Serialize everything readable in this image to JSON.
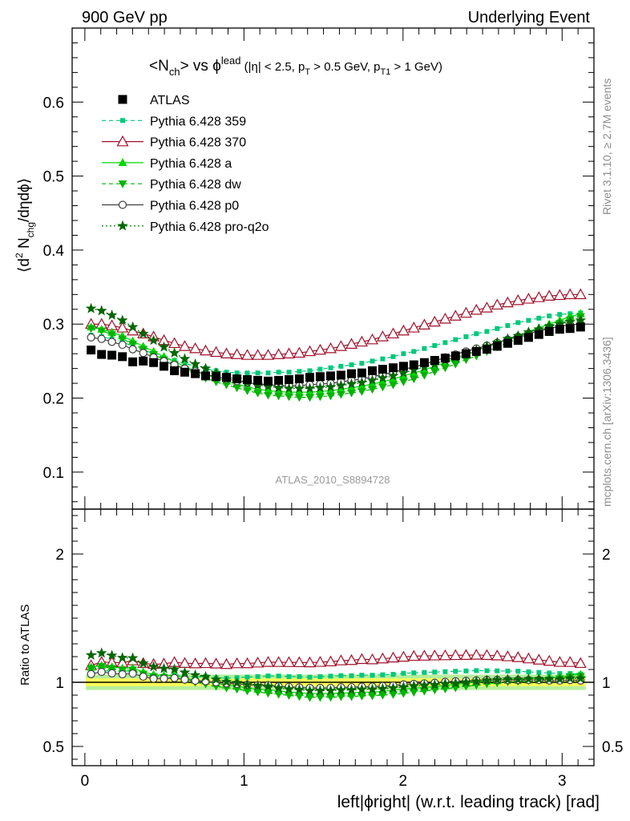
{
  "header": {
    "left": "900 GeV pp",
    "right": "Underlying Event"
  },
  "side": {
    "rivet": "Rivet 3.1.10, ≥ 2.7M events",
    "mcplots": "mcplots.cern.ch [arXiv:1306.3436]"
  },
  "watermark": "ATLAS_2010_S8894728",
  "colors": {
    "atlas": "#000000",
    "p359": "#00c87a",
    "p370": "#a0102a",
    "pa": "#00d800",
    "pdw": "#00b400",
    "pp0": "#404040",
    "pq2o": "#006600",
    "band_inner": "#ffff55",
    "band_outer": "#b6ee9c"
  },
  "chart_data": [
    {
      "type": "scatter",
      "title": "<Nch> vs φlead (|η| < 2.5, pT > 0.5 GeV, pT1 > 1 GeV)",
      "ylabel": "⟨d² Nchg/dηdφ⟩",
      "xlim": [
        -0.08,
        3.2
      ],
      "ylim": [
        0.05,
        0.7
      ],
      "yticks": [
        "0.1",
        "0.2",
        "0.3",
        "0.4",
        "0.5",
        "0.6"
      ],
      "legend_position": "top-left",
      "legend": [
        "ATLAS",
        "Pythia 6.428 359",
        "Pythia 6.428 370",
        "Pythia 6.428 a",
        "Pythia 6.428 dw",
        "Pythia 6.428 p0",
        "Pythia 6.428 pro-q2o"
      ],
      "x": [
        0.039,
        0.105,
        0.17,
        0.236,
        0.301,
        0.367,
        0.432,
        0.497,
        0.563,
        0.628,
        0.694,
        0.759,
        0.825,
        0.89,
        0.956,
        1.021,
        1.087,
        1.152,
        1.218,
        1.283,
        1.348,
        1.414,
        1.479,
        1.545,
        1.61,
        1.676,
        1.741,
        1.807,
        1.872,
        1.938,
        2.003,
        2.068,
        2.134,
        2.199,
        2.265,
        2.33,
        2.396,
        2.461,
        2.527,
        2.592,
        2.658,
        2.723,
        2.789,
        2.854,
        2.919,
        2.985,
        3.05,
        3.116
      ],
      "series": [
        {
          "name": "ATLAS",
          "values": [
            0.265,
            0.259,
            0.258,
            0.256,
            0.249,
            0.25,
            0.248,
            0.243,
            0.237,
            0.235,
            0.233,
            0.23,
            0.229,
            0.228,
            0.226,
            0.225,
            0.224,
            0.223,
            0.224,
            0.225,
            0.226,
            0.228,
            0.229,
            0.23,
            0.231,
            0.233,
            0.234,
            0.237,
            0.239,
            0.241,
            0.243,
            0.245,
            0.248,
            0.251,
            0.254,
            0.257,
            0.26,
            0.263,
            0.266,
            0.27,
            0.274,
            0.278,
            0.282,
            0.286,
            0.29,
            0.293,
            0.294,
            0.296
          ]
        },
        {
          "name": "Pythia 6.428 359",
          "values": [
            0.285,
            0.283,
            0.28,
            0.276,
            0.27,
            0.265,
            0.26,
            0.255,
            0.251,
            0.247,
            0.243,
            0.24,
            0.237,
            0.235,
            0.234,
            0.234,
            0.234,
            0.234,
            0.235,
            0.235,
            0.236,
            0.237,
            0.239,
            0.241,
            0.243,
            0.245,
            0.247,
            0.25,
            0.253,
            0.256,
            0.26,
            0.263,
            0.267,
            0.271,
            0.275,
            0.279,
            0.283,
            0.287,
            0.29,
            0.294,
            0.298,
            0.302,
            0.305,
            0.308,
            0.311,
            0.313,
            0.314,
            0.315
          ]
        },
        {
          "name": "Pythia 6.428 370",
          "values": [
            0.3,
            0.3,
            0.298,
            0.295,
            0.291,
            0.287,
            0.283,
            0.278,
            0.274,
            0.27,
            0.267,
            0.264,
            0.262,
            0.26,
            0.259,
            0.258,
            0.258,
            0.258,
            0.259,
            0.26,
            0.261,
            0.263,
            0.265,
            0.267,
            0.27,
            0.273,
            0.276,
            0.279,
            0.283,
            0.287,
            0.291,
            0.295,
            0.299,
            0.303,
            0.307,
            0.311,
            0.315,
            0.319,
            0.322,
            0.326,
            0.329,
            0.332,
            0.334,
            0.336,
            0.338,
            0.339,
            0.34,
            0.34
          ]
        },
        {
          "name": "Pythia 6.428 a",
          "values": [
            0.296,
            0.293,
            0.289,
            0.284,
            0.277,
            0.27,
            0.263,
            0.256,
            0.249,
            0.243,
            0.237,
            0.232,
            0.227,
            0.223,
            0.219,
            0.215,
            0.212,
            0.21,
            0.209,
            0.208,
            0.208,
            0.208,
            0.209,
            0.21,
            0.212,
            0.214,
            0.216,
            0.219,
            0.222,
            0.226,
            0.23,
            0.234,
            0.238,
            0.243,
            0.248,
            0.253,
            0.258,
            0.264,
            0.269,
            0.274,
            0.28,
            0.285,
            0.29,
            0.295,
            0.3,
            0.305,
            0.31,
            0.314
          ]
        },
        {
          "name": "Pythia 6.428 dw",
          "values": [
            0.294,
            0.291,
            0.286,
            0.28,
            0.273,
            0.266,
            0.259,
            0.252,
            0.245,
            0.239,
            0.233,
            0.227,
            0.222,
            0.218,
            0.214,
            0.21,
            0.207,
            0.204,
            0.203,
            0.202,
            0.201,
            0.201,
            0.202,
            0.203,
            0.205,
            0.207,
            0.209,
            0.212,
            0.215,
            0.218,
            0.222,
            0.226,
            0.231,
            0.236,
            0.241,
            0.246,
            0.252,
            0.257,
            0.263,
            0.269,
            0.275,
            0.28,
            0.286,
            0.291,
            0.296,
            0.301,
            0.306,
            0.31
          ]
        },
        {
          "name": "Pythia 6.428 p0",
          "values": [
            0.282,
            0.28,
            0.276,
            0.272,
            0.266,
            0.261,
            0.255,
            0.25,
            0.245,
            0.24,
            0.236,
            0.232,
            0.229,
            0.226,
            0.223,
            0.221,
            0.219,
            0.218,
            0.217,
            0.217,
            0.217,
            0.218,
            0.219,
            0.22,
            0.222,
            0.224,
            0.226,
            0.229,
            0.232,
            0.235,
            0.239,
            0.242,
            0.246,
            0.25,
            0.255,
            0.259,
            0.263,
            0.267,
            0.271,
            0.275,
            0.279,
            0.283,
            0.287,
            0.291,
            0.294,
            0.297,
            0.299,
            0.3
          ]
        },
        {
          "name": "Pythia 6.428 pro-q2o",
          "values": [
            0.321,
            0.318,
            0.312,
            0.305,
            0.296,
            0.287,
            0.278,
            0.269,
            0.261,
            0.253,
            0.246,
            0.24,
            0.234,
            0.229,
            0.225,
            0.221,
            0.218,
            0.216,
            0.214,
            0.213,
            0.213,
            0.213,
            0.214,
            0.215,
            0.217,
            0.219,
            0.221,
            0.224,
            0.227,
            0.23,
            0.234,
            0.238,
            0.242,
            0.246,
            0.251,
            0.255,
            0.26,
            0.265,
            0.27,
            0.275,
            0.28,
            0.284,
            0.289,
            0.293,
            0.297,
            0.3,
            0.303,
            0.305
          ]
        }
      ]
    },
    {
      "type": "scatter",
      "ylabel": "Ratio to ATLAS",
      "xlabel": "left|ϕright| (w.r.t. leading track) [rad]",
      "xlim": [
        -0.08,
        3.2
      ],
      "ylim": [
        0.35,
        2.35
      ],
      "yticks": [
        "0.5",
        "1",
        "2"
      ],
      "xticks": [
        "0",
        "1",
        "2",
        "3"
      ],
      "reference": 1.0,
      "band_inner_half_width": 0.03,
      "band_outer_half_width": 0.06
    }
  ]
}
